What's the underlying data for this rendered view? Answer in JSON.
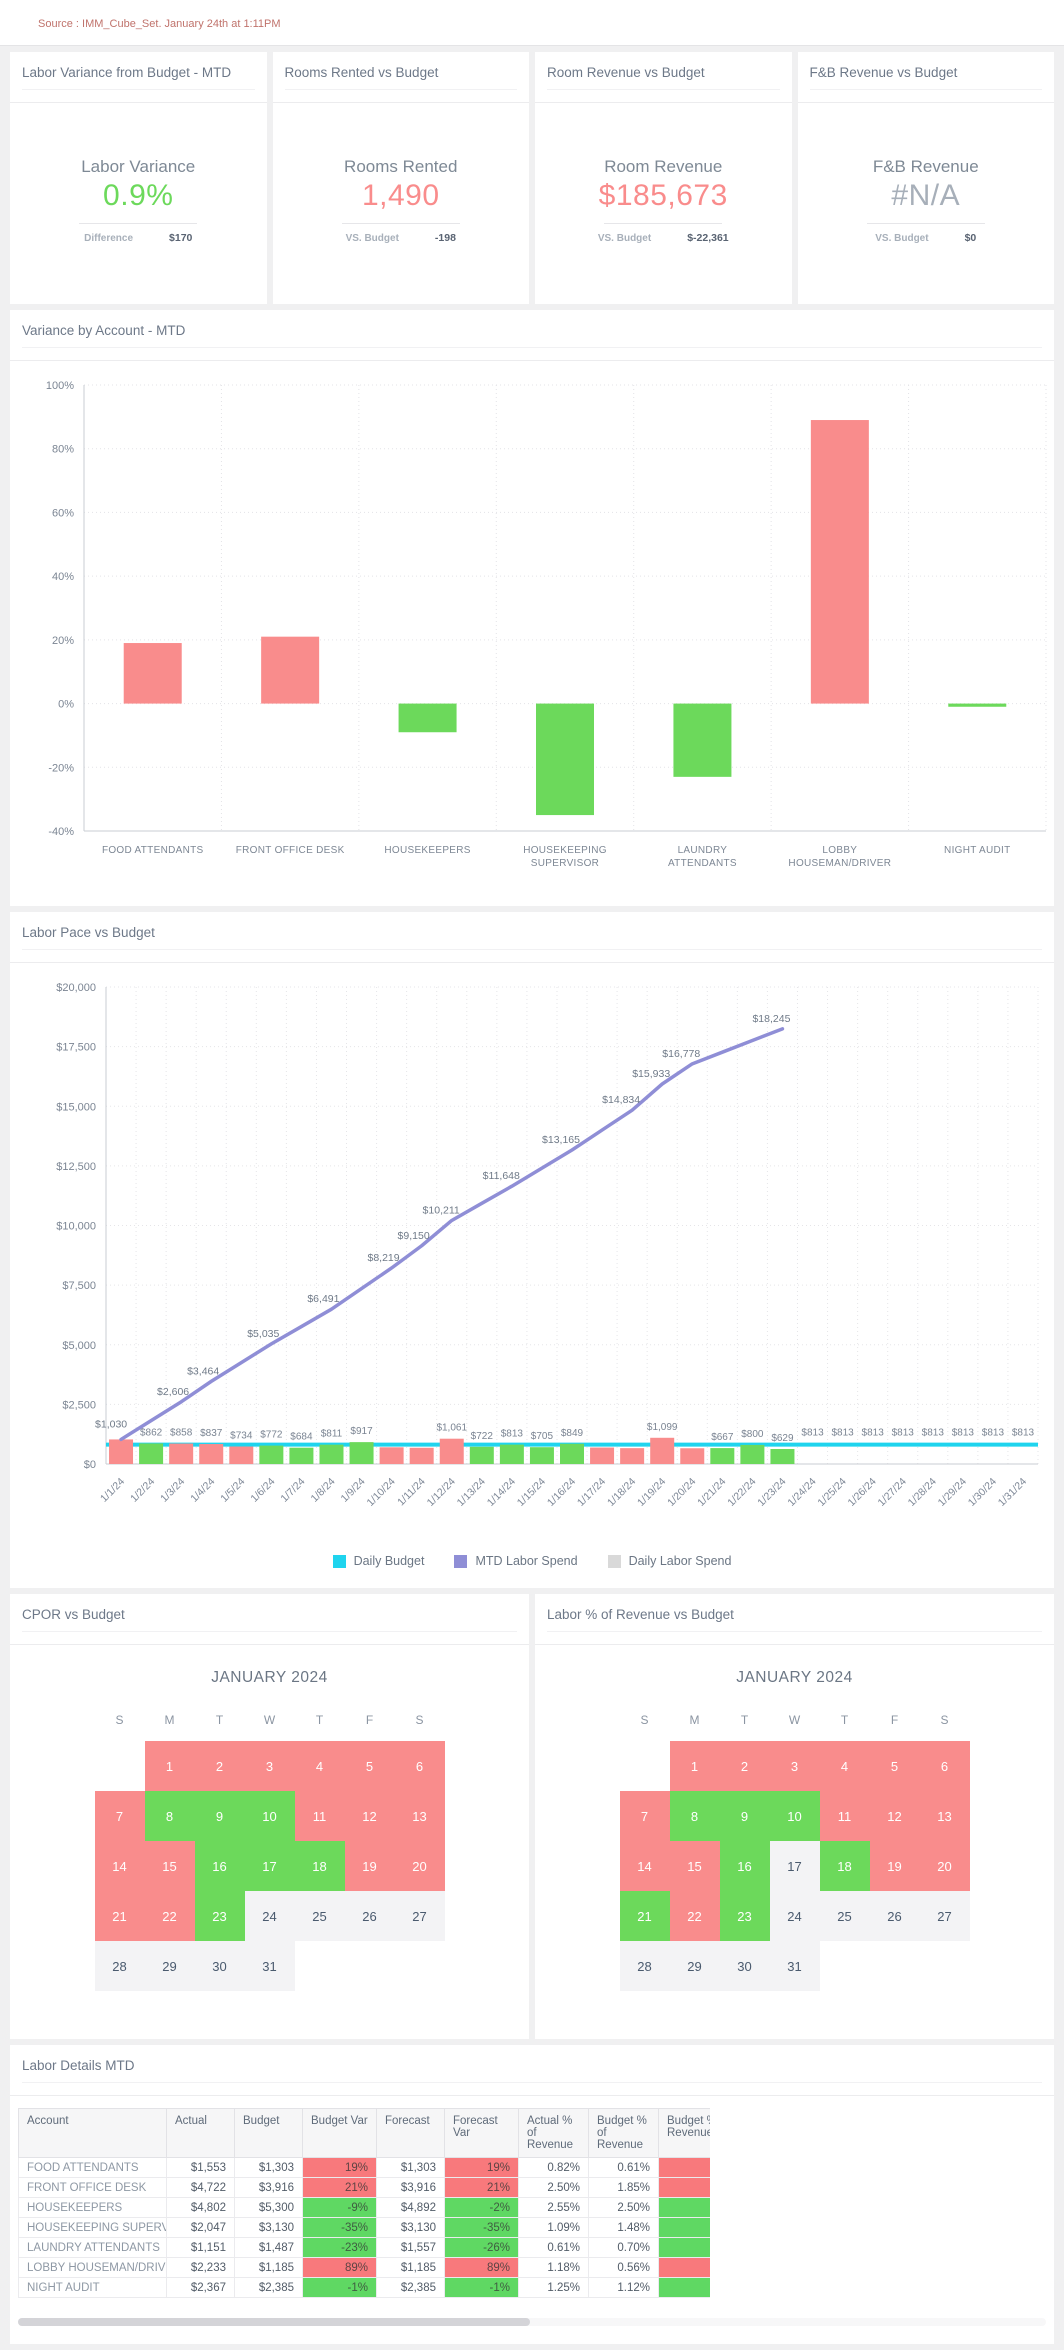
{
  "source": "Source : IMM_Cube_Set. January 24th at 1:11PM",
  "colors": {
    "red": "#F98C8C",
    "green": "#6CD95B",
    "gray": "#A7AFB9",
    "purple": "#8F8ED6",
    "cyan": "#1FD4EE",
    "swatch_gray": "#D9D9D9",
    "table_red": "#F8797C",
    "table_green": "#5FD863"
  },
  "kpis": [
    {
      "card_title": "Labor Variance from Budget - MTD",
      "label": "Labor Variance",
      "value": "0.9%",
      "value_color": "green",
      "sub_label": "Difference",
      "sub_value": "$170"
    },
    {
      "card_title": "Rooms Rented vs Budget",
      "label": "Rooms Rented",
      "value": "1,490",
      "value_color": "red",
      "sub_label": "VS. Budget",
      "sub_value": "-198"
    },
    {
      "card_title": "Room Revenue vs Budget",
      "label": "Room Revenue",
      "value": "$185,673",
      "value_color": "red",
      "sub_label": "VS. Budget",
      "sub_value": "$-22,361"
    },
    {
      "card_title": "F&B Revenue vs Budget",
      "label": "F&B Revenue",
      "value": "#N/A",
      "value_color": "gray",
      "sub_label": "VS. Budget",
      "sub_value": "$0"
    }
  ],
  "legend": {
    "items": [
      {
        "label": "Daily Budget",
        "color": "cyan"
      },
      {
        "label": "MTD Labor Spend",
        "color": "purple"
      },
      {
        "label": "Daily Labor Spend",
        "color": "swatch_gray"
      }
    ]
  },
  "chart_data": [
    {
      "type": "bar",
      "title": "Variance by Account - MTD",
      "categories": [
        "FOOD ATTENDANTS",
        "FRONT OFFICE DESK",
        "HOUSEKEEPERS",
        "HOUSEKEEPING\nSUPERVISOR",
        "LAUNDRY\nATTENDANTS",
        "LOBBY\nHOUSEMAN/DRIVER",
        "NIGHT AUDIT"
      ],
      "values": [
        19,
        21,
        -9,
        -35,
        -23,
        89,
        -1
      ],
      "bar_colors": [
        "red",
        "red",
        "green",
        "green",
        "green",
        "red",
        "green"
      ],
      "ylim": [
        -40,
        100
      ],
      "ytick_step": 20,
      "ytick_suffix": "%",
      "grid": "dotted"
    },
    {
      "type": "line+bar",
      "title": "Labor Pace vs Budget",
      "x": [
        "1/1/24",
        "1/2/24",
        "1/3/24",
        "1/4/24",
        "1/5/24",
        "1/6/24",
        "1/7/24",
        "1/8/24",
        "1/9/24",
        "1/10/24",
        "1/11/24",
        "1/12/24",
        "1/13/24",
        "1/14/24",
        "1/15/24",
        "1/16/24",
        "1/17/24",
        "1/18/24",
        "1/19/24",
        "1/20/24",
        "1/21/24",
        "1/22/24",
        "1/23/24",
        "1/24/24",
        "1/25/24",
        "1/26/24",
        "1/27/24",
        "1/28/24",
        "1/29/24",
        "1/30/24",
        "1/31/24"
      ],
      "ylim": [
        0,
        20000
      ],
      "ytick_step": 2500,
      "ytick_prefix": "$",
      "series": [
        {
          "name": "Daily Budget",
          "kind": "line",
          "color": "cyan",
          "constant": 813
        },
        {
          "name": "MTD Labor Spend",
          "kind": "line",
          "color": "purple",
          "values": [
            1030,
            1818,
            2606,
            3464,
            4250,
            5035,
            5763,
            6491,
            7355,
            8219,
            9150,
            10211,
            10930,
            11648,
            12407,
            13165,
            14000,
            14834,
            15933,
            16778,
            17267,
            17756,
            18245
          ],
          "point_labels": {
            "1": "$1,030",
            "3": "$2,606",
            "4": "$3,464",
            "6": "$5,035",
            "8": "$6,491",
            "10": "$8,219",
            "11": "$9,150",
            "12": "$10,211",
            "14": "$11,648",
            "16": "$13,165",
            "18": "$14,834",
            "19": "$15,933",
            "20": "$16,778",
            "23": "$18,245"
          }
        },
        {
          "name": "Daily Labor Spend",
          "kind": "bar",
          "legend_color": "swatch_gray",
          "values": [
            1030,
            862,
            858,
            837,
            734,
            772,
            684,
            811,
            917,
            700,
            680,
            1061,
            722,
            813,
            705,
            849,
            690,
            665,
            1099,
            660,
            667,
            800,
            629
          ],
          "colors": [
            "red",
            "green",
            "red",
            "red",
            "red",
            "green",
            "green",
            "green",
            "green",
            "red",
            "red",
            "red",
            "green",
            "green",
            "green",
            "green",
            "red",
            "red",
            "red",
            "red",
            "green",
            "green",
            "green"
          ],
          "labels": [
            null,
            "$862",
            "$858",
            "$837",
            "$734",
            "$772",
            "$684",
            "$811",
            "$917",
            null,
            null,
            "$1,061",
            "$722",
            "$813",
            "$705",
            "$849",
            null,
            null,
            "$1,099",
            null,
            "$667",
            "$800",
            "$629"
          ]
        }
      ],
      "budget_line_labels": {
        "24": "$813",
        "25": "$813",
        "26": "$813",
        "27": "$813",
        "28": "$813",
        "29": "$813",
        "30": "$813",
        "31": "$813"
      }
    },
    {
      "type": "heatmap",
      "title": "CPOR vs Budget",
      "month": "JANUARY 2024",
      "weekdays": [
        "S",
        "M",
        "T",
        "W",
        "T",
        "F",
        "S"
      ],
      "start_col": 1,
      "num_days": 31,
      "day_colors": [
        "red",
        "red",
        "red",
        "red",
        "red",
        "red",
        "red",
        "green",
        "green",
        "green",
        "red",
        "red",
        "red",
        "red",
        "red",
        "green",
        "green",
        "green",
        "red",
        "red",
        "red",
        "red",
        "green",
        "gray",
        "gray",
        "gray",
        "gray",
        "gray",
        "gray",
        "gray",
        "gray"
      ]
    },
    {
      "type": "heatmap",
      "title": "Labor % of Revenue vs Budget",
      "month": "JANUARY 2024",
      "weekdays": [
        "S",
        "M",
        "T",
        "W",
        "T",
        "F",
        "S"
      ],
      "start_col": 1,
      "num_days": 31,
      "day_colors": [
        "red",
        "red",
        "red",
        "red",
        "red",
        "red",
        "red",
        "green",
        "green",
        "green",
        "red",
        "red",
        "red",
        "red",
        "red",
        "green",
        "gray",
        "green",
        "red",
        "red",
        "green",
        "red",
        "green",
        "gray",
        "gray",
        "gray",
        "gray",
        "gray",
        "gray",
        "gray",
        "gray"
      ]
    },
    {
      "type": "table",
      "title": "Labor Details MTD",
      "columns": [
        "Account",
        "Actual",
        "Budget",
        "Budget Var",
        "Forecast",
        "Forecast Var",
        "Actual % of Revenue",
        "Budget % of Revenue",
        "Budget % of Revenue Var"
      ],
      "rows": [
        [
          "FOOD ATTENDANTS",
          "$1,553",
          "$1,303",
          "19%",
          "$1,303",
          "19%",
          "0.82%",
          "0.61%"
        ],
        [
          "FRONT OFFICE DESK",
          "$4,722",
          "$3,916",
          "21%",
          "$3,916",
          "21%",
          "2.50%",
          "1.85%"
        ],
        [
          "HOUSEKEEPERS",
          "$4,802",
          "$5,300",
          "-9%",
          "$4,892",
          "-2%",
          "2.55%",
          "2.50%"
        ],
        [
          "HOUSEKEEPING SUPERVISOR",
          "$2,047",
          "$3,130",
          "-35%",
          "$3,130",
          "-35%",
          "1.09%",
          "1.48%"
        ],
        [
          "LAUNDRY ATTENDANTS",
          "$1,151",
          "$1,487",
          "-23%",
          "$1,557",
          "-26%",
          "0.61%",
          "0.70%"
        ],
        [
          "LOBBY HOUSEMAN/DRIVER",
          "$2,233",
          "$1,185",
          "89%",
          "$1,185",
          "89%",
          "1.18%",
          "0.56%"
        ],
        [
          "NIGHT AUDIT",
          "$2,367",
          "$2,385",
          "-1%",
          "$2,385",
          "-1%",
          "1.25%",
          "1.12%"
        ]
      ],
      "var_columns": [
        3,
        5
      ],
      "clipped_last_column": true
    }
  ]
}
